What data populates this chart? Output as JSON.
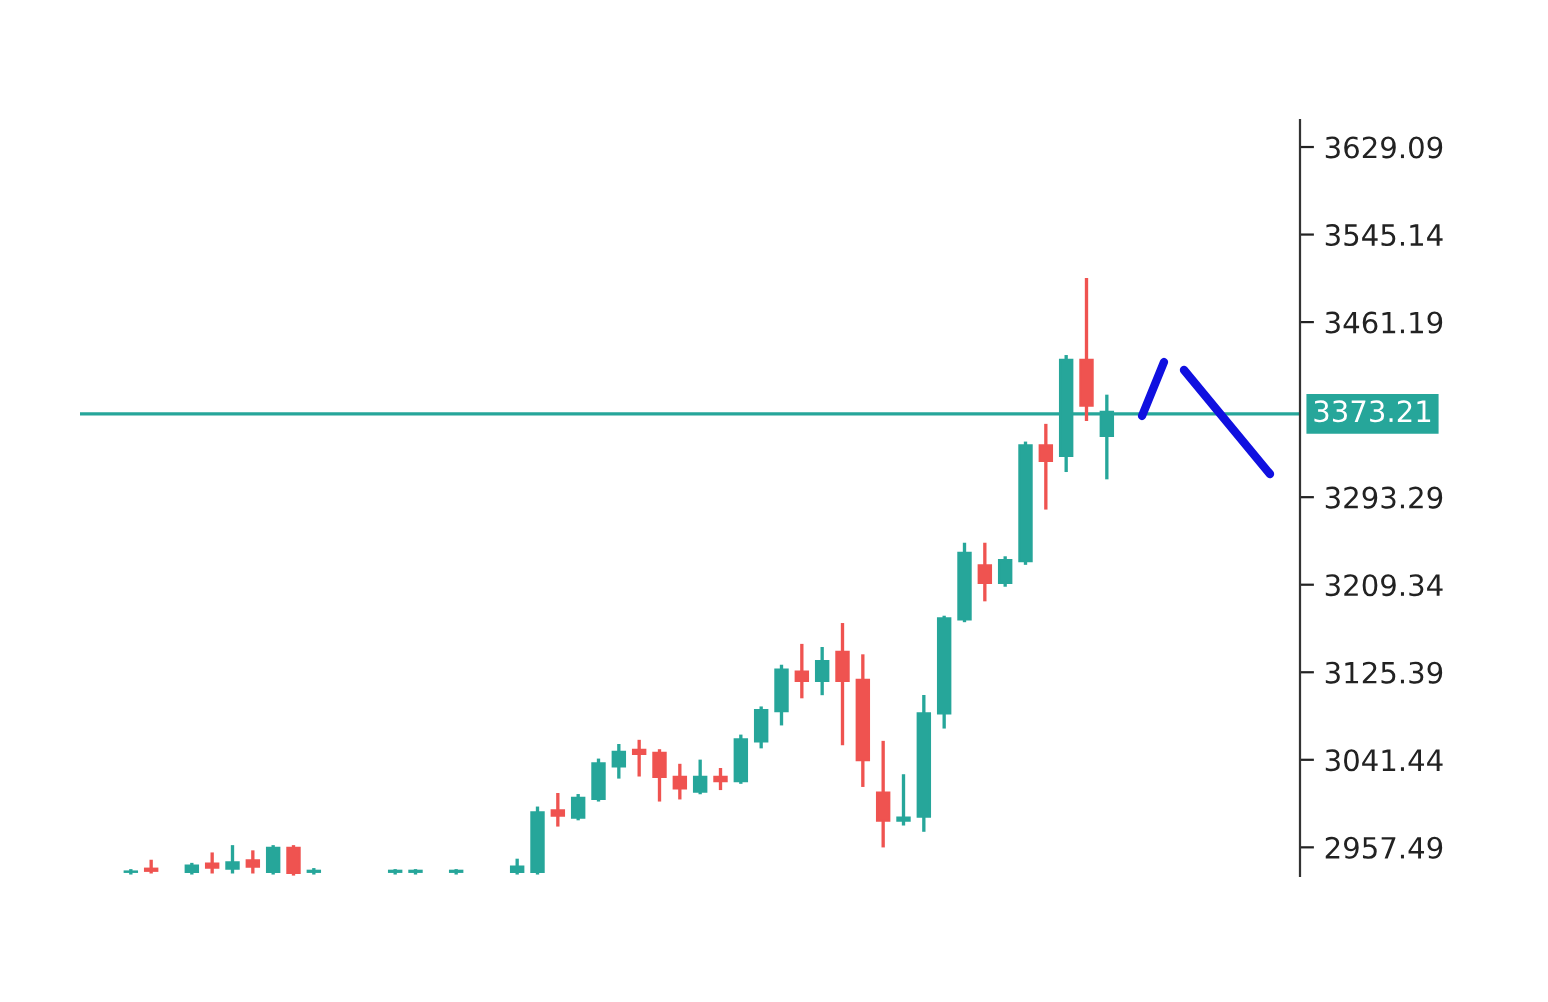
{
  "chart_data": {
    "type": "candlestick",
    "categories": [
      null,
      null,
      null,
      null,
      null,
      null,
      null,
      null,
      null,
      null,
      null,
      null,
      null,
      null,
      null,
      null,
      null,
      null,
      null,
      null,
      null,
      null,
      null,
      null,
      null,
      null,
      null,
      null,
      null,
      null,
      null,
      null,
      null,
      null,
      null,
      null,
      null,
      null,
      null,
      null,
      null,
      null,
      null,
      null,
      null,
      null,
      null,
      null,
      null,
      null,
      null,
      null,
      null,
      null,
      null,
      null,
      null,
      null,
      null,
      null
    ],
    "ohlc": [
      null,
      null,
      [
        2934,
        2935,
        2933,
        2934
      ],
      [
        2937,
        2944,
        2934,
        2935
      ],
      null,
      [
        2934,
        2941,
        2933,
        2940
      ],
      [
        2942,
        2951,
        2934,
        2938
      ],
      [
        2937,
        2958,
        2934,
        2943
      ],
      [
        2945,
        2953,
        2934,
        2939
      ],
      [
        2934,
        2958,
        2933,
        2957
      ],
      [
        2957,
        2958,
        2932,
        2933
      ],
      [
        2934,
        2936,
        2933,
        2935
      ],
      null,
      null,
      null,
      [
        2934,
        2935,
        2933,
        2935
      ],
      [
        2934,
        2935,
        2933,
        2935
      ],
      null,
      [
        2934,
        2935,
        2933,
        2935
      ],
      null,
      null,
      [
        2934,
        2945,
        2933,
        2939
      ],
      [
        2934,
        2995,
        2933,
        2991
      ],
      [
        2993,
        3008,
        2979,
        2988
      ],
      [
        2986,
        3007,
        2985,
        3005
      ],
      [
        3004,
        3041,
        3003,
        3038
      ],
      [
        3035,
        3055,
        3025,
        3049
      ],
      [
        3051,
        3059,
        3027,
        3047
      ],
      [
        3048,
        3050,
        3003,
        3025
      ],
      [
        3025,
        3036,
        3005,
        3014
      ],
      [
        3011,
        3040,
        3010,
        3025
      ],
      [
        3025,
        3032,
        3014,
        3021
      ],
      [
        3021,
        3064,
        3020,
        3061
      ],
      [
        3059,
        3091,
        3054,
        3089
      ],
      [
        3088,
        3131,
        3076,
        3128
      ],
      [
        3126,
        3151,
        3102,
        3117
      ],
      [
        3117,
        3148,
        3105,
        3136
      ],
      [
        3145,
        3171,
        3057,
        3117
      ],
      [
        3118,
        3141,
        3017,
        3041
      ],
      [
        3010,
        3058,
        2959,
        2983
      ],
      [
        2983,
        3026,
        2980,
        2986
      ],
      [
        2987,
        3102,
        2974,
        3086
      ],
      [
        3086,
        3178,
        3073,
        3177
      ],
      [
        3176,
        3248,
        3175,
        3240
      ],
      [
        3228,
        3248,
        3195,
        3211
      ],
      [
        3211,
        3235,
        3209,
        3233
      ],
      [
        3232,
        3345,
        3230,
        3343
      ],
      [
        3343,
        3362,
        3283,
        3328
      ],
      [
        3333,
        3428,
        3319,
        3425
      ],
      [
        3425,
        3502,
        3368,
        3381
      ],
      [
        3352,
        3390,
        3312,
        3375
      ],
      null,
      null,
      null,
      null,
      null,
      null,
      null,
      null,
      null
    ],
    "colors": [
      null,
      null,
      "#26a69a",
      "#ef5350",
      null,
      "#26a69a",
      "#ef5350",
      "#26a69a",
      "#ef5350",
      "#26a69a",
      "#ef5350",
      "#26a69a",
      null,
      null,
      null,
      "#26a69a",
      "#26a69a",
      null,
      "#26a69a",
      null,
      null,
      "#26a69a",
      "#26a69a",
      "#ef5350",
      "#26a69a",
      "#26a69a",
      "#26a69a",
      "#ef5350",
      "#ef5350",
      "#ef5350",
      "#26a69a",
      "#ef5350",
      "#26a69a",
      "#26a69a",
      "#26a69a",
      "#ef5350",
      "#26a69a",
      "#ef5350",
      "#ef5350",
      "#ef5350",
      "#26a69a",
      "#26a69a",
      "#26a69a",
      "#26a69a",
      "#ef5350",
      "#26a69a",
      "#26a69a",
      "#ef5350",
      "#26a69a",
      "#ef5350",
      "#26a69a",
      null,
      null,
      null,
      null,
      null,
      null,
      null,
      null,
      null
    ],
    "ylim": [
      2930,
      3655
    ],
    "yticks": [
      2957.49,
      3041.44,
      3125.39,
      3209.34,
      3293.29,
      3461.19,
      3545.14,
      3629.09
    ],
    "ref_lines": [
      {
        "axis": "y",
        "value": 3373.21,
        "label": "3373.21",
        "color": "#26a69a"
      }
    ],
    "tick_labels": "y",
    "grid": false
  }
}
